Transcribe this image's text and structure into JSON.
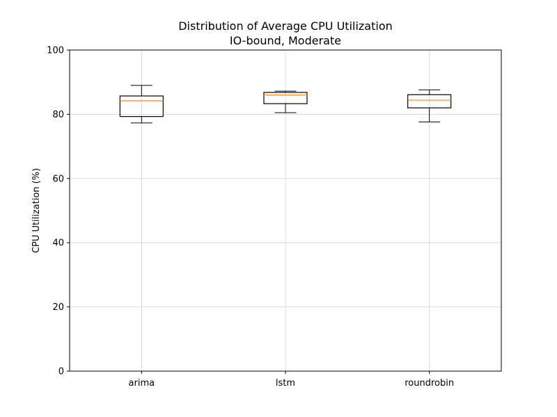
{
  "chart_data": {
    "type": "boxplot",
    "title": "Distribution of Average CPU Utilization",
    "subtitle": "IO-bound, Moderate",
    "xlabel": "",
    "ylabel": "CPU Utilization (%)",
    "ylim": [
      0,
      100
    ],
    "yticks": [
      "0",
      "20",
      "40",
      "60",
      "80",
      "100"
    ],
    "grid": true,
    "categories": [
      "arima",
      "lstm",
      "roundrobin"
    ],
    "boxes": [
      {
        "whisker_low": 77.3,
        "q1": 79.3,
        "median": 84.2,
        "q3": 85.7,
        "whisker_high": 89.0
      },
      {
        "whisker_low": 80.5,
        "q1": 83.3,
        "median": 86.0,
        "q3": 86.8,
        "whisker_high": 87.2
      },
      {
        "whisker_low": 77.6,
        "q1": 82.0,
        "median": 84.4,
        "q3": 86.1,
        "whisker_high": 87.6
      }
    ],
    "colors": {
      "box": "#000000",
      "median": "#ff7f0e",
      "grid": "#d3d3d3"
    }
  }
}
